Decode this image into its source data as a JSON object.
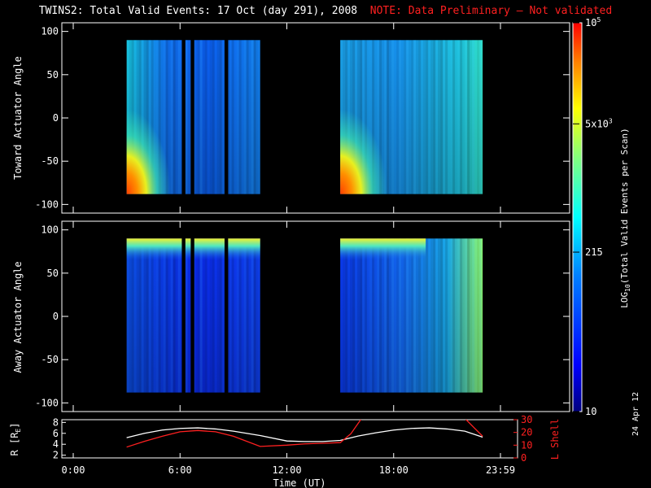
{
  "title": {
    "main": "TWINS2: Total Valid Events: 17 Oct (day 291), 2008",
    "note": "NOTE: Data Preliminary — Not validated",
    "note_color": "#ff2020"
  },
  "side_date": "24 Apr 12",
  "chart_data": [
    {
      "type": "heatmap",
      "ylabel": "Toward Actuator Angle",
      "ylim": [
        -110,
        110
      ],
      "yticks": [
        "100",
        "50",
        "0",
        "-50",
        "-100"
      ],
      "xlim": [
        0,
        24
      ],
      "coverage_hours": [
        [
          3.0,
          10.5
        ],
        [
          15.0,
          23.0
        ]
      ],
      "data_gaps_hours": [
        [
          6.1,
          6.3
        ],
        [
          6.6,
          6.8
        ],
        [
          8.5,
          8.7
        ]
      ],
      "angle_range": [
        -88,
        90
      ],
      "note": "High counts (orange/red) near -88° at start of each interval"
    },
    {
      "type": "heatmap",
      "ylabel": "Away Actuator Angle",
      "ylim": [
        -110,
        110
      ],
      "yticks": [
        "100",
        "50",
        "0",
        "-50",
        "-100"
      ],
      "xlim": [
        0,
        24
      ],
      "coverage_hours": [
        [
          3.0,
          10.5
        ],
        [
          15.0,
          23.0
        ]
      ],
      "data_gaps_hours": [
        [
          6.1,
          6.3
        ],
        [
          6.6,
          6.8
        ],
        [
          8.5,
          8.7
        ]
      ],
      "angle_range": [
        -88,
        90
      ]
    },
    {
      "type": "line",
      "xlabel": "Time (UT)",
      "xticks": [
        "0:00",
        "6:00",
        "12:00",
        "18:00",
        "23:59"
      ],
      "xlim": [
        0,
        24
      ],
      "left_axis": {
        "label": "R [R",
        "label_sub": "E",
        "label_end": "]",
        "ticks": [
          "8",
          "6",
          "4",
          "2"
        ],
        "ylim": [
          1.5,
          8.5
        ]
      },
      "right_axis": {
        "label": "L Shell",
        "ticks": [
          "30",
          "20",
          "10",
          "0"
        ],
        "ylim": [
          0,
          30
        ],
        "color": "#ff2020"
      },
      "series": [
        {
          "color": "#ffffff",
          "axis": "left",
          "x": [
            3,
            4,
            5,
            6,
            7,
            8,
            9,
            10.5,
            12,
            13,
            14,
            15,
            16,
            17,
            18,
            19,
            20,
            21,
            22,
            23
          ],
          "y": [
            5.2,
            6.0,
            6.6,
            6.9,
            7.0,
            6.8,
            6.4,
            5.6,
            4.6,
            4.5,
            4.5,
            4.7,
            5.5,
            6.1,
            6.6,
            6.9,
            7.0,
            6.8,
            6.4,
            5.3
          ]
        },
        {
          "color": "#ff2020",
          "axis": "right",
          "x": [
            3,
            4,
            5,
            6,
            7,
            8,
            9,
            10.5,
            12,
            13,
            14,
            15,
            15.6,
            16.2,
            22,
            22.5,
            23
          ],
          "y": [
            8.5,
            13,
            17,
            20.5,
            21.5,
            20.5,
            17,
            9,
            10,
            11,
            11.5,
            12,
            19,
            31,
            31,
            24,
            17
          ]
        }
      ]
    }
  ],
  "colorbar": {
    "label": "LOG",
    "label_sub": "10",
    "label_end": "(Total Valid Events per Scan)",
    "ticks": [
      {
        "text": "10",
        "sup": "5",
        "frac": 1.0
      },
      {
        "text": "5x10",
        "sup": "3",
        "frac": 0.74
      },
      {
        "text": "215",
        "sup": "",
        "frac": 0.41
      },
      {
        "text": "10",
        "sup": "",
        "frac": 0.0
      }
    ]
  }
}
